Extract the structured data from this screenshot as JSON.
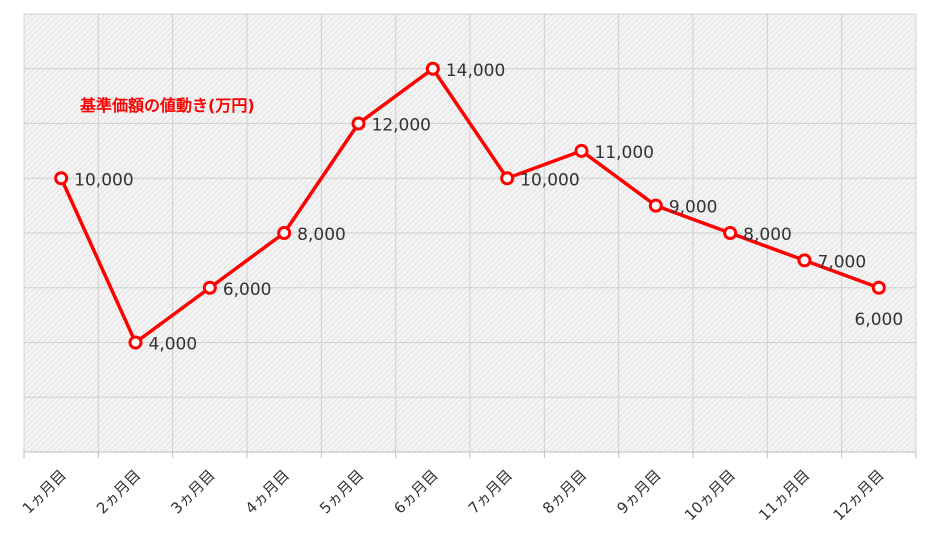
{
  "chart_data": {
    "type": "line",
    "title": "基準価額の値動き(万円)",
    "categories": [
      "1ヵ月目",
      "2ヵ月目",
      "3ヵ月目",
      "4ヵ月目",
      "5ヵ月目",
      "6ヵ月目",
      "7ヵ月目",
      "8ヵ月目",
      "9ヵ月目",
      "10ヵ月目",
      "11ヵ月目",
      "12ヵ月目"
    ],
    "values": [
      10000,
      4000,
      6000,
      8000,
      12000,
      14000,
      10000,
      11000,
      9000,
      8000,
      7000,
      6000
    ],
    "value_labels": [
      "10,000",
      "4,000",
      "6,000",
      "8,000",
      "12,000",
      "14,000",
      "10,000",
      "11,000",
      "9,000",
      "8,000",
      "7,000",
      "6,000"
    ],
    "color": "#ff0000",
    "ylim": [
      0,
      16000
    ],
    "yticks": [
      0,
      2000,
      4000,
      6000,
      8000,
      10000,
      12000,
      14000,
      16000
    ],
    "grid": true
  }
}
